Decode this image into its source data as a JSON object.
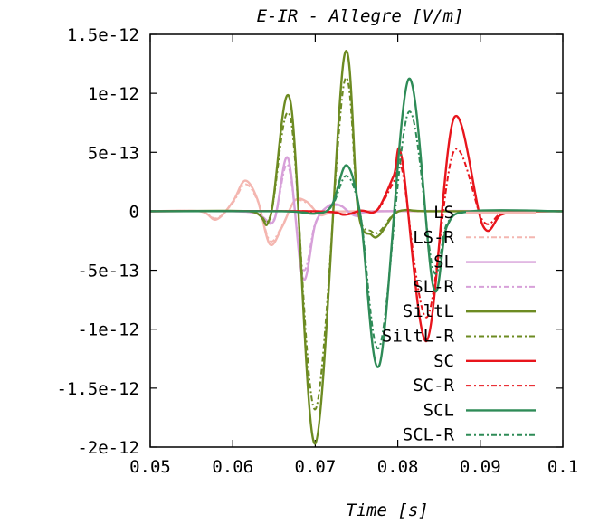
{
  "chart_data": {
    "type": "line",
    "title": "E-IR - Allegre [V/m]",
    "xlabel": "Time [s]",
    "ylabel": "",
    "xlim": [
      0.05,
      0.1
    ],
    "ylim": [
      -2e-12,
      1.5e-12
    ],
    "x_ticks": [
      0.05,
      0.06,
      0.07,
      0.08,
      0.09,
      0.1
    ],
    "x_tick_labels": [
      "0.05",
      "0.06",
      "0.07",
      "0.08",
      "0.09",
      "0.1"
    ],
    "y_ticks": [
      1.5e-12,
      1e-12,
      5e-13,
      0,
      -5e-13,
      -1e-12,
      -1.5e-12,
      -2e-12
    ],
    "y_tick_labels": [
      "1.5e-12",
      "1e-12",
      "5e-13",
      "0",
      "-5e-13",
      "-1e-12",
      "-1.5e-12",
      "-2e-12"
    ],
    "grid": false,
    "legend_position": "right",
    "series": [
      {
        "name": "LS",
        "color": "#f4b6b0",
        "dash": "solid",
        "x": [
          0.05,
          0.056,
          0.058,
          0.06,
          0.0615,
          0.063,
          0.0645,
          0.066,
          0.0675,
          0.069,
          0.0705,
          0.072,
          0.075,
          0.1
        ],
        "y": [
          0,
          0,
          -7e-14,
          8e-14,
          2.6e-13,
          1e-13,
          -2.8e-13,
          -1.3e-13,
          9e-14,
          8e-14,
          -3e-14,
          -1e-14,
          0,
          0
        ]
      },
      {
        "name": "LS-R",
        "color": "#f4b6b0",
        "dash": "6,3,2,3",
        "x": [
          0.05,
          0.056,
          0.058,
          0.06,
          0.0615,
          0.063,
          0.0645,
          0.066,
          0.0675,
          0.069,
          0.0705,
          0.072,
          0.075,
          0.1
        ],
        "y": [
          0,
          0,
          -6e-14,
          7e-14,
          2.3e-13,
          9e-14,
          -2.5e-13,
          -1.2e-13,
          8e-14,
          7e-14,
          -2.5e-14,
          -1e-14,
          0,
          0
        ]
      },
      {
        "name": "SL",
        "color": "#d7a0d9",
        "dash": "solid",
        "x": [
          0.05,
          0.06,
          0.063,
          0.065,
          0.0667,
          0.0685,
          0.07,
          0.0715,
          0.073,
          0.075,
          0.078,
          0.1
        ],
        "y": [
          0,
          0,
          -2e-14,
          -8e-14,
          4.5e-13,
          -5.7e-13,
          -1.1e-13,
          4e-14,
          5e-14,
          -4e-14,
          0,
          0
        ]
      },
      {
        "name": "SL-R",
        "color": "#d7a0d9",
        "dash": "6,3,2,3",
        "x": [
          0.05,
          0.06,
          0.063,
          0.065,
          0.0667,
          0.0685,
          0.07,
          0.0715,
          0.073,
          0.075,
          0.078,
          0.1
        ],
        "y": [
          0,
          0,
          -2e-14,
          -7e-14,
          3.9e-13,
          -4.9e-13,
          -1e-13,
          3.5e-14,
          4.5e-14,
          -3.5e-14,
          0,
          0
        ]
      },
      {
        "name": "SiltL",
        "color": "#6d8b22",
        "dash": "solid",
        "x": [
          0.05,
          0.062,
          0.0645,
          0.067,
          0.07,
          0.0735,
          0.0752,
          0.0768,
          0.0778,
          0.0795,
          0.081,
          0.084,
          0.1
        ],
        "y": [
          0,
          0,
          -6e-14,
          9.3e-13,
          -1.97e-12,
          1.31e-12,
          0,
          -2e-13,
          -2e-13,
          -3e-14,
          1e-14,
          0,
          0
        ]
      },
      {
        "name": "SiltL-R",
        "color": "#6d8b22",
        "dash": "6,3,2,3",
        "x": [
          0.05,
          0.062,
          0.0645,
          0.067,
          0.07,
          0.0735,
          0.0752,
          0.0768,
          0.0778,
          0.0795,
          0.081,
          0.084,
          0.1
        ],
        "y": [
          0,
          0,
          -5e-14,
          7.9e-13,
          -1.68e-12,
          1.09e-12,
          0,
          -1.7e-13,
          -1.7e-13,
          -2.5e-14,
          8e-15,
          0,
          0
        ]
      },
      {
        "name": "SC",
        "color": "#e8151c",
        "dash": "solid",
        "x": [
          0.05,
          0.07,
          0.0735,
          0.0755,
          0.0775,
          0.0795,
          0.0805,
          0.0835,
          0.0868,
          0.0903,
          0.0925,
          0.095,
          0.1
        ],
        "y": [
          0,
          0,
          -3e-14,
          5e-15,
          1e-14,
          3e-13,
          4.5e-13,
          -1.1e-12,
          7.9e-13,
          -1.2e-13,
          -3e-14,
          0,
          0
        ]
      },
      {
        "name": "SC-R",
        "color": "#e8151c",
        "dash": "6,3,2,3",
        "x": [
          0.05,
          0.07,
          0.0735,
          0.0755,
          0.0775,
          0.0795,
          0.0805,
          0.0835,
          0.0868,
          0.0903,
          0.0925,
          0.095,
          0.1
        ],
        "y": [
          0,
          0,
          -2.5e-14,
          4e-15,
          8e-15,
          2.5e-13,
          3.6e-13,
          -9e-13,
          5.1e-13,
          -8e-14,
          -2e-14,
          0,
          0
        ]
      },
      {
        "name": "SCL",
        "color": "#2e8b57",
        "dash": "solid",
        "x": [
          0.05,
          0.066,
          0.07,
          0.072,
          0.0738,
          0.0755,
          0.0778,
          0.0813,
          0.0843,
          0.086,
          0.089,
          0.1
        ],
        "y": [
          0,
          0,
          -2e-14,
          5e-14,
          3.9e-13,
          -5e-14,
          -1.3e-12,
          1.12e-12,
          -6.4e-13,
          -1.2e-13,
          0,
          0
        ]
      },
      {
        "name": "SCL-R",
        "color": "#2e8b57",
        "dash": "6,3,2,3",
        "x": [
          0.05,
          0.066,
          0.07,
          0.072,
          0.0738,
          0.0755,
          0.0778,
          0.0813,
          0.0843,
          0.086,
          0.089,
          0.1
        ],
        "y": [
          0,
          0,
          -1.5e-14,
          4e-14,
          3e-13,
          -4e-14,
          -1.15e-12,
          8.4e-13,
          -5e-13,
          -1e-13,
          0,
          0
        ]
      }
    ]
  }
}
